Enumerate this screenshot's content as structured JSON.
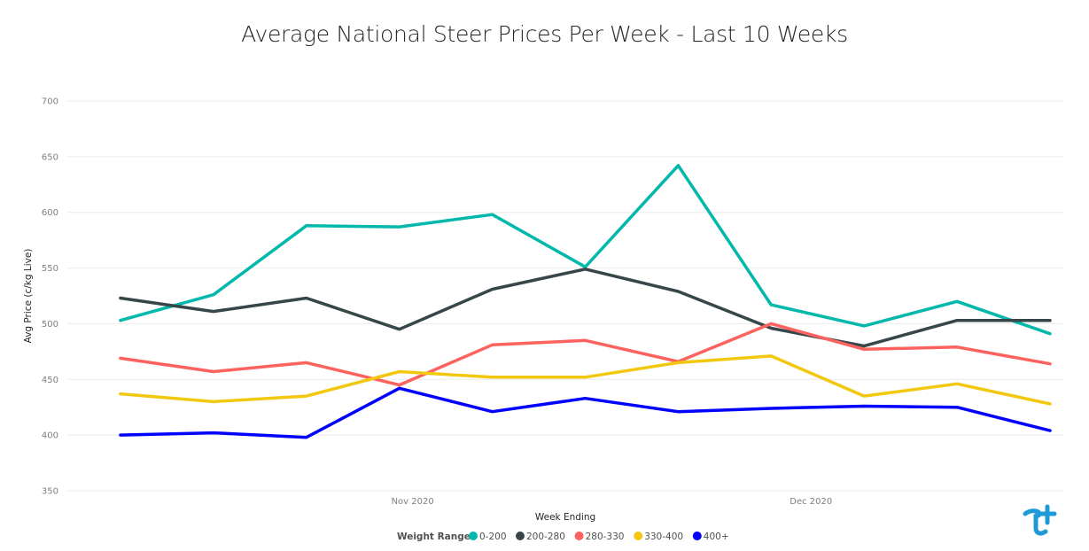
{
  "chart_data": {
    "type": "line",
    "title": "Average National Steer Prices Per Week - Last 10 Weeks",
    "xlabel": "Week Ending",
    "ylabel": "Avg Price (c/kg Live)",
    "ylim": [
      350,
      700
    ],
    "yticks": [
      350,
      400,
      450,
      500,
      550,
      600,
      650,
      700
    ],
    "x": [
      "2020-10-10",
      "2020-10-17",
      "2020-10-24",
      "2020-10-31",
      "2020-11-07",
      "2020-11-14",
      "2020-11-21",
      "2020-11-28",
      "2020-12-05",
      "2020-12-12",
      "2020-12-19"
    ],
    "xlim": [
      "2020-10-06",
      "2020-12-20"
    ],
    "xticks": [
      {
        "date": "2020-11-01",
        "label": "Nov 2020"
      },
      {
        "date": "2020-12-01",
        "label": "Dec 2020"
      }
    ],
    "grid": true,
    "legend": {
      "title": "Weight Range",
      "position": "bottom-center"
    },
    "series": [
      {
        "name": "0-200",
        "color": "#01B8AA",
        "values": [
          503,
          526,
          588,
          587,
          598,
          551,
          642,
          517,
          498,
          520,
          491
        ]
      },
      {
        "name": "200-280",
        "color": "#374649",
        "values": [
          523,
          511,
          523,
          495,
          531,
          549,
          529,
          496,
          480,
          503,
          503
        ]
      },
      {
        "name": "280-330",
        "color": "#FD625E",
        "values": [
          469,
          457,
          465,
          445,
          481,
          485,
          466,
          500,
          477,
          479,
          464
        ]
      },
      {
        "name": "330-400",
        "color": "#F2C80F",
        "values": [
          437,
          430,
          435,
          457,
          452,
          452,
          465,
          471,
          435,
          446,
          428
        ]
      },
      {
        "name": "400+",
        "color": "#0000FF",
        "values": [
          400,
          402,
          398,
          442,
          421,
          433,
          421,
          424,
          426,
          425,
          404
        ]
      }
    ]
  },
  "logo": {
    "name": "brand-logo",
    "color": "#1E9BD7"
  }
}
